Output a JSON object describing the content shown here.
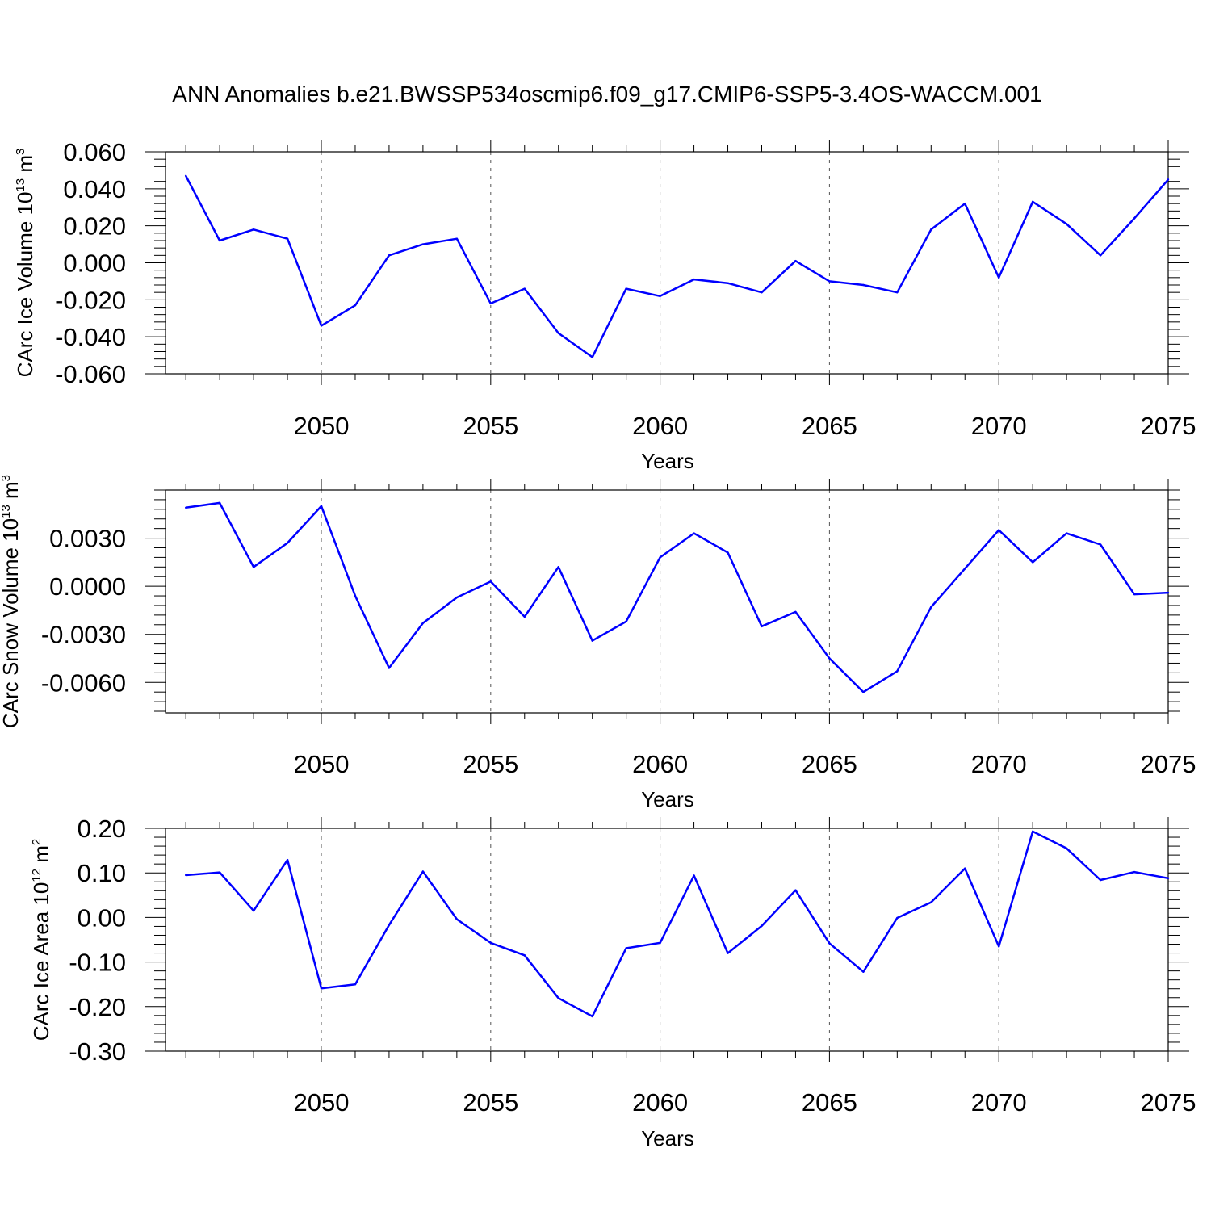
{
  "title": "ANN Anomalies b.e21.BWSSP534oscmip6.f09_g17.CMIP6-SSP5-3.4OS-WACCM.001",
  "colors": {
    "line": "#0000ff",
    "axis": "#000000",
    "grid": "#555555"
  },
  "chart_data": [
    {
      "type": "line",
      "ylabel": "CArc Ice Volume 10",
      "ylabel_exp": "13",
      "ylabel_unit": " m",
      "ylabel_unit_exp": "3",
      "xlabel": "Years",
      "xlim": [
        2045.4,
        2075
      ],
      "ylim": [
        -0.06,
        0.06
      ],
      "xticks": [
        2050,
        2055,
        2060,
        2065,
        2070,
        2075
      ],
      "xtick_labels": [
        "2050",
        "2055",
        "2060",
        "2065",
        "2070",
        "2075"
      ],
      "yticks": [
        -0.06,
        -0.04,
        -0.02,
        0.0,
        0.02,
        0.04,
        0.06
      ],
      "ytick_labels": [
        "-0.060",
        "-0.040",
        "-0.020",
        "0.000",
        "0.020",
        "0.040",
        "0.060"
      ],
      "ygrid": false,
      "xgrid": true,
      "x": [
        2046,
        2047,
        2048,
        2049,
        2050,
        2051,
        2052,
        2053,
        2054,
        2055,
        2056,
        2057,
        2058,
        2059,
        2060,
        2061,
        2062,
        2063,
        2064,
        2065,
        2066,
        2067,
        2068,
        2069,
        2070,
        2071,
        2072,
        2073,
        2074,
        2075
      ],
      "series": [
        {
          "values": [
            0.047,
            0.012,
            0.018,
            0.013,
            -0.034,
            -0.023,
            0.004,
            0.01,
            0.013,
            -0.022,
            -0.014,
            -0.038,
            -0.051,
            -0.014,
            -0.018,
            -0.009,
            -0.011,
            -0.016,
            0.001,
            -0.01,
            -0.012,
            -0.016,
            0.018,
            0.032,
            -0.008,
            0.033,
            0.021,
            0.004,
            0.024,
            0.045
          ]
        }
      ]
    },
    {
      "type": "line",
      "ylabel": "CArc Snow Volume 10",
      "ylabel_exp": "13",
      "ylabel_unit": " m",
      "ylabel_unit_exp": "3",
      "xlabel": "Years",
      "xlim": [
        2045.4,
        2075
      ],
      "ylim": [
        -0.0079,
        0.006
      ],
      "xticks": [
        2050,
        2055,
        2060,
        2065,
        2070,
        2075
      ],
      "xtick_labels": [
        "2050",
        "2055",
        "2060",
        "2065",
        "2070",
        "2075"
      ],
      "yticks": [
        -0.006,
        -0.003,
        0.0,
        0.003
      ],
      "ytick_labels": [
        "-0.0060",
        "-0.0030",
        "0.0000",
        "0.0030"
      ],
      "ygrid": false,
      "xgrid": true,
      "x": [
        2046,
        2047,
        2048,
        2049,
        2050,
        2051,
        2052,
        2053,
        2054,
        2055,
        2056,
        2057,
        2058,
        2059,
        2060,
        2061,
        2062,
        2063,
        2064,
        2065,
        2066,
        2067,
        2068,
        2069,
        2070,
        2071,
        2072,
        2073,
        2074,
        2075
      ],
      "series": [
        {
          "values": [
            0.0049,
            0.0052,
            0.0012,
            0.0027,
            0.005,
            -0.0006,
            -0.0051,
            -0.0023,
            -0.0007,
            0.0003,
            -0.0019,
            0.0012,
            -0.0034,
            -0.0022,
            0.0018,
            0.0033,
            0.0021,
            -0.0025,
            -0.0016,
            -0.0045,
            -0.0066,
            -0.0053,
            -0.0013,
            0.0011,
            0.0035,
            0.0015,
            0.0033,
            0.0026,
            -0.0005,
            -0.0004
          ]
        }
      ]
    },
    {
      "type": "line",
      "ylabel": "CArc Ice Area 10",
      "ylabel_exp": "12",
      "ylabel_unit": " m",
      "ylabel_unit_exp": "2",
      "xlabel": "Years",
      "xlim": [
        2045.4,
        2075
      ],
      "ylim": [
        -0.3,
        0.2
      ],
      "xticks": [
        2050,
        2055,
        2060,
        2065,
        2070,
        2075
      ],
      "xtick_labels": [
        "2050",
        "2055",
        "2060",
        "2065",
        "2070",
        "2075"
      ],
      "yticks": [
        -0.3,
        -0.2,
        -0.1,
        0.0,
        0.1,
        0.2
      ],
      "ytick_labels": [
        "-0.30",
        "-0.20",
        "-0.10",
        "0.00",
        "0.10",
        "0.20"
      ],
      "ygrid": false,
      "xgrid": true,
      "x": [
        2046,
        2047,
        2048,
        2049,
        2050,
        2051,
        2052,
        2053,
        2054,
        2055,
        2056,
        2057,
        2058,
        2059,
        2060,
        2061,
        2062,
        2063,
        2064,
        2065,
        2066,
        2067,
        2068,
        2069,
        2070,
        2071,
        2072,
        2073,
        2074,
        2075
      ],
      "series": [
        {
          "values": [
            0.095,
            0.101,
            0.015,
            0.129,
            -0.159,
            -0.15,
            -0.017,
            0.103,
            -0.004,
            -0.057,
            -0.085,
            -0.181,
            -0.222,
            -0.069,
            -0.057,
            0.094,
            -0.08,
            -0.019,
            0.061,
            -0.058,
            -0.122,
            -0.001,
            0.034,
            0.11,
            -0.065,
            0.193,
            0.155,
            0.084,
            0.102,
            0.088
          ]
        }
      ]
    }
  ]
}
